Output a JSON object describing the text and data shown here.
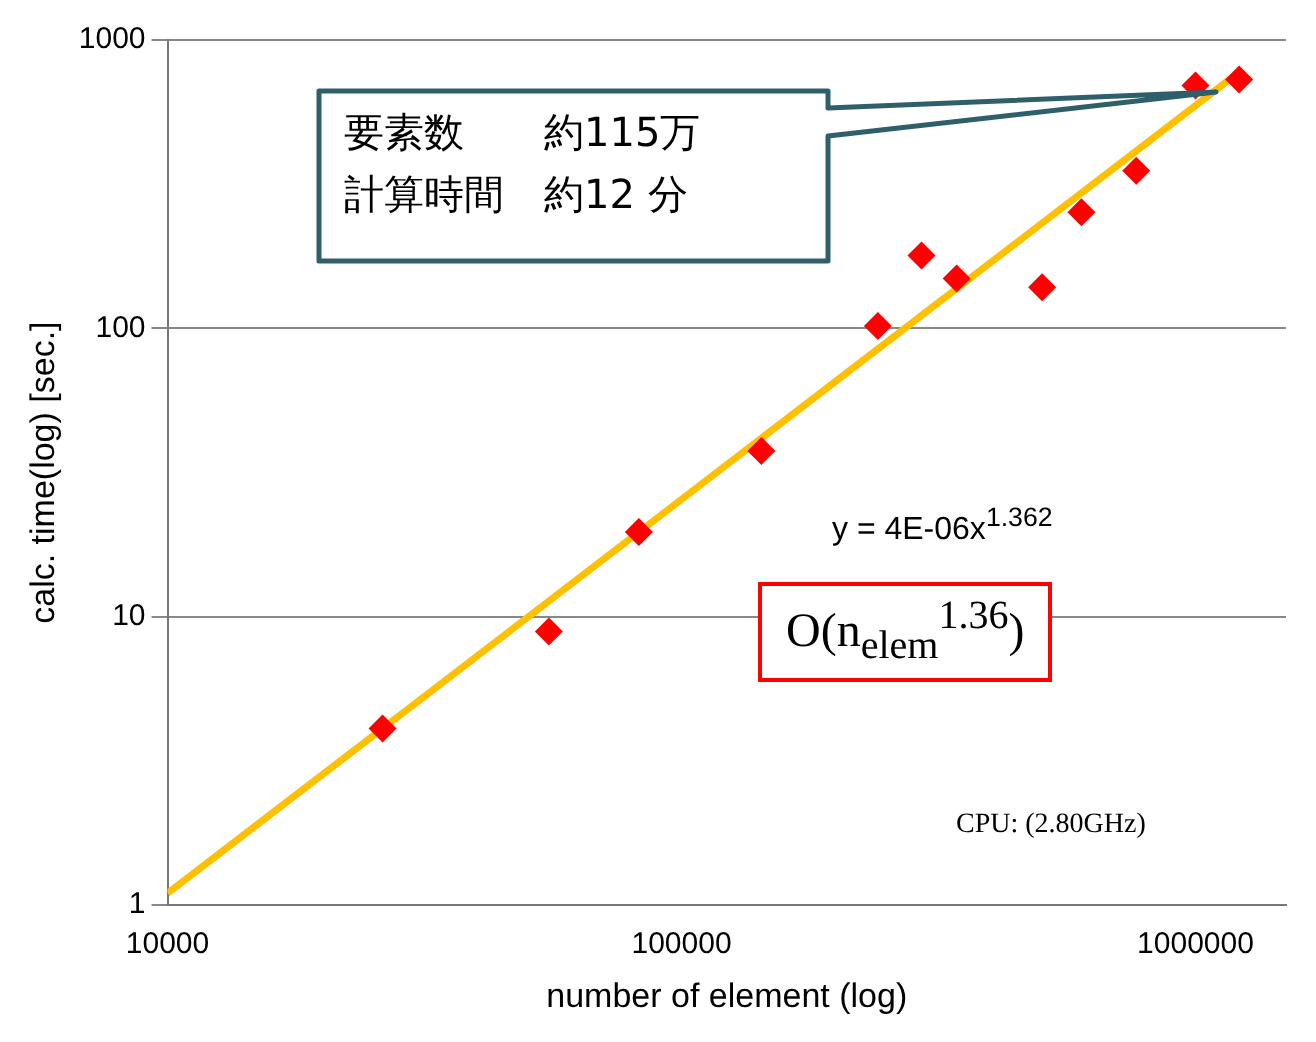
{
  "chart_data": {
    "type": "scatter",
    "xlabel": "number of element (log)",
    "ylabel": "calc. time(log) [sec.]",
    "log": "xy",
    "grid": "y",
    "legend": false,
    "marker": "diamond",
    "xlim": [
      10000,
      1500000
    ],
    "xticks": [
      10000,
      100000,
      1000000
    ],
    "ylim": [
      1,
      1000
    ],
    "yticks": [
      1,
      10,
      100,
      1000
    ],
    "x": [
      26200,
      55200,
      82600,
      143000,
      241000,
      293000,
      343000,
      503000,
      600000,
      767000,
      1000000,
      1216000
    ],
    "series": [
      {
        "color": "#ff0000",
        "values": [
          4.1,
          8.9,
          19.7,
          37.6,
          102,
          179,
          149,
          139,
          253,
          352,
          695,
          730
        ]
      },
      {
        "type": "line",
        "marker": "none",
        "color": "#ffc000",
        "x": [
          10000,
          1200000
        ],
        "values": [
          1.1,
          760
        ]
      }
    ],
    "annotations": [
      "要素数　　約115万",
      "計算時間　約12 分",
      "y = 4E-06x$^{1.362}$",
      "O(n$_{elem}$$^{1.36}$)",
      "CPU: (2.80GHz)"
    ]
  }
}
